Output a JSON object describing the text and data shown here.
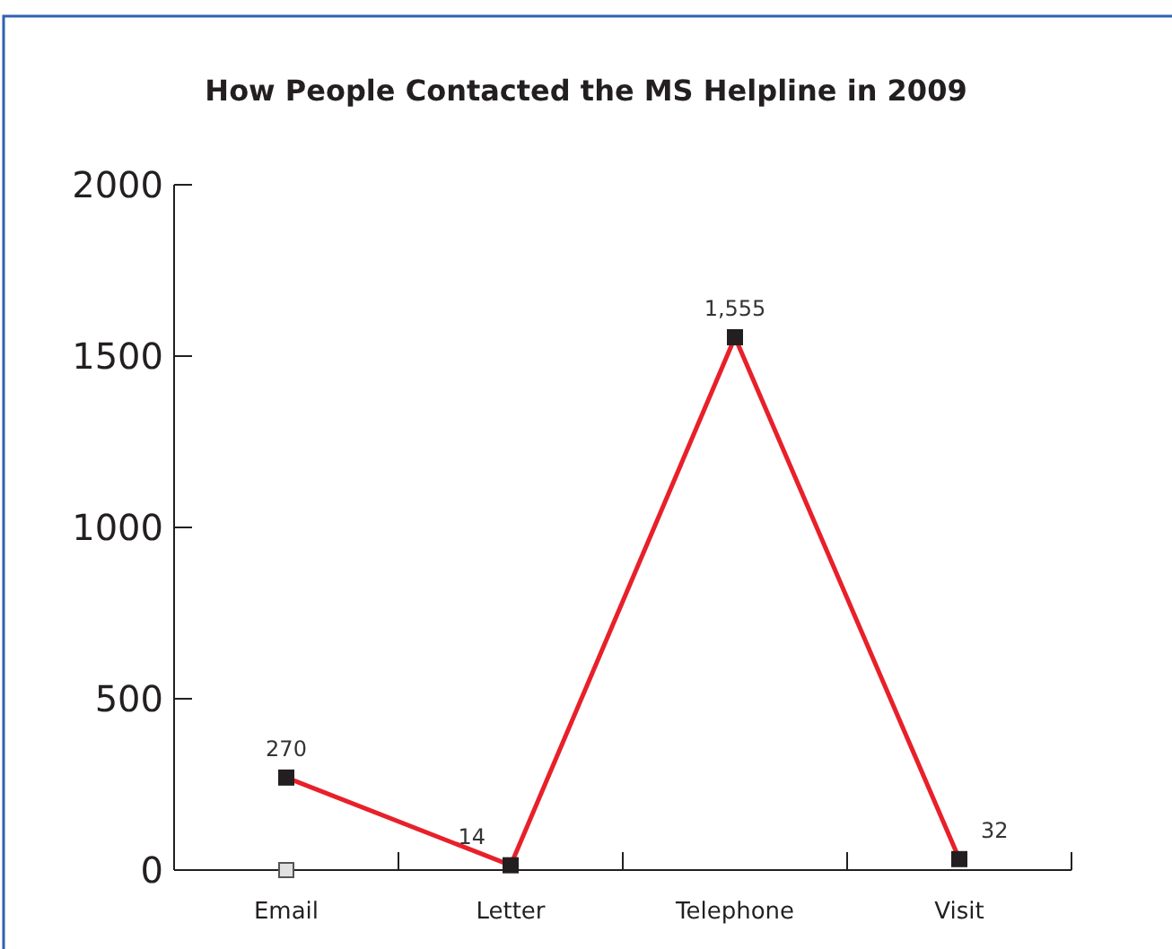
{
  "chart_data": {
    "type": "line",
    "title": "How People Contacted the MS Helpline in 2009",
    "categories": [
      "Email",
      "Letter",
      "Telephone",
      "Visit"
    ],
    "series": [
      {
        "color": "#e8202a",
        "values": [
          270,
          14,
          1555,
          32
        ],
        "value_labels": [
          "270",
          "14",
          "1,555",
          "32"
        ],
        "marker": "square"
      },
      {
        "type": "scatter",
        "color": "#e0e0e0",
        "values": [
          0,
          null,
          null,
          null
        ],
        "marker": "square"
      }
    ],
    "ylim": [
      0,
      2000
    ],
    "yticks": [
      0,
      500,
      1000,
      1500,
      2000
    ]
  }
}
